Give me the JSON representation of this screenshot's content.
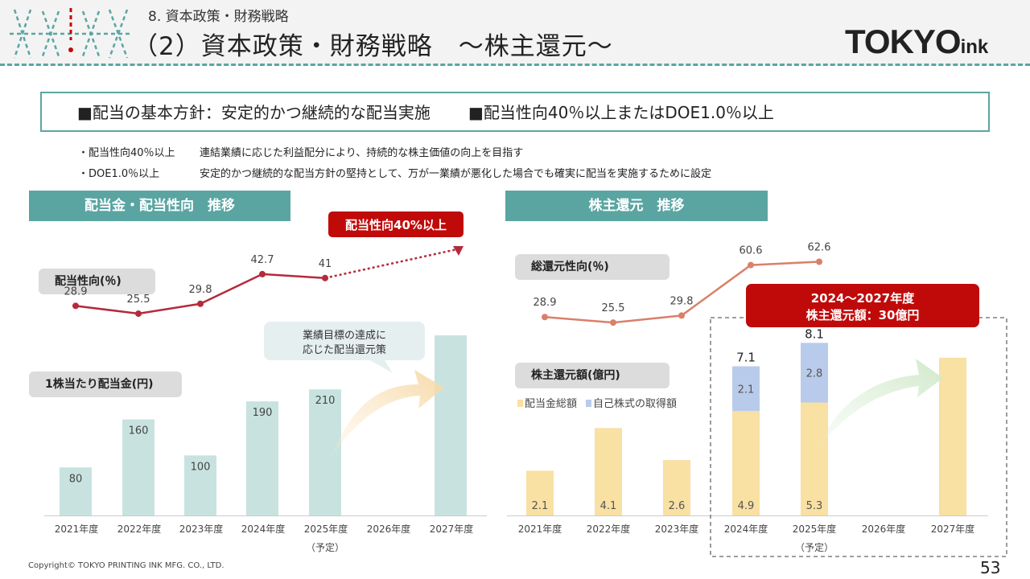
{
  "header": {
    "section": "8. 資本政策・財務戦略",
    "title": "（2）資本政策・財務戦略　～株主還元～",
    "logo_main": "TOKYO",
    "logo_sub": "ink"
  },
  "policy": {
    "part1": "■配当の基本方針：安定的かつ継続的な配当実施",
    "part2": "■配当性向40％以上またはDOE1.0％以上"
  },
  "notes": [
    {
      "label": "・配当性向40％以上",
      "text": "連結業績に応じた利益配分により、持続的な株主価値の向上を目指す"
    },
    {
      "label": "・DOE1.0％以上",
      "text": "安定的かつ継続的な配当方針の堅持として、万が一業績が悪化した場合でも確実に配当を実施するために設定"
    }
  ],
  "left_panel": {
    "title": "配当金・配当性向　推移",
    "ratio_pill": "配当性向(％)",
    "dps_pill": "1株当たり配当金(円)",
    "callout": "配当性向40%以上",
    "bubble_line1": "業績目標の達成に",
    "bubble_line2": "応じた配当還元策"
  },
  "right_panel": {
    "title": "株主還元　推移",
    "ratio_pill": "総還元性向(％)",
    "amount_pill": "株主還元額(億円)",
    "legend_dividend": "配当金総額",
    "legend_buyback": "自己株式の取得額",
    "callout_line1": "2024～2027年度",
    "callout_line2": "株主還元額：30億円"
  },
  "colors": {
    "teal": "#5aa5a2",
    "bar_teal": "#c8e3df",
    "line_red": "#b52a3b",
    "callout_red": "#c00a0a",
    "line_salmon": "#d9806a",
    "bar_yellow": "#f9e0a3",
    "bar_blue": "#b9cbea"
  },
  "chart_data": [
    {
      "type": "bar",
      "title": "配当金・配当性向　推移",
      "categories": [
        "2021年度",
        "2022年度",
        "2023年度",
        "2024年度",
        "2025年度",
        "2026年度",
        "2027年度"
      ],
      "category_note": {
        "2025年度": "（予定）"
      },
      "series": [
        {
          "name": "1株当たり配当金(円)",
          "values": [
            80,
            160,
            100,
            190,
            210,
            null,
            300
          ]
        },
        {
          "name": "配当性向(％)",
          "type": "line",
          "values": [
            28.9,
            25.5,
            29.8,
            42.7,
            41.0,
            null,
            null
          ]
        }
      ],
      "projection": "配当性向40%以上",
      "legend": "none"
    },
    {
      "type": "bar",
      "stacked": true,
      "title": "株主還元　推移",
      "categories": [
        "2021年度",
        "2022年度",
        "2023年度",
        "2024年度",
        "2025年度",
        "2026年度",
        "2027年度"
      ],
      "category_note": {
        "2025年度": "（予定）"
      },
      "series": [
        {
          "name": "配当金総額",
          "values": [
            2.1,
            4.1,
            2.6,
            4.9,
            5.3,
            null,
            7.4
          ]
        },
        {
          "name": "自己株式の取得額",
          "values": [
            0,
            0,
            0,
            2.1,
            2.8,
            null,
            0
          ]
        },
        {
          "name": "総還元性向(％)",
          "type": "line",
          "values": [
            28.9,
            25.5,
            29.8,
            60.6,
            62.6,
            null,
            null
          ]
        }
      ],
      "totals": {
        "2024年度": 7.1,
        "2025年度": 8.1
      },
      "legend": "top-left"
    }
  ],
  "footer": {
    "copyright": "Copyright© TOKYO PRINTING INK MFG. CO., LTD.",
    "page": "53"
  }
}
